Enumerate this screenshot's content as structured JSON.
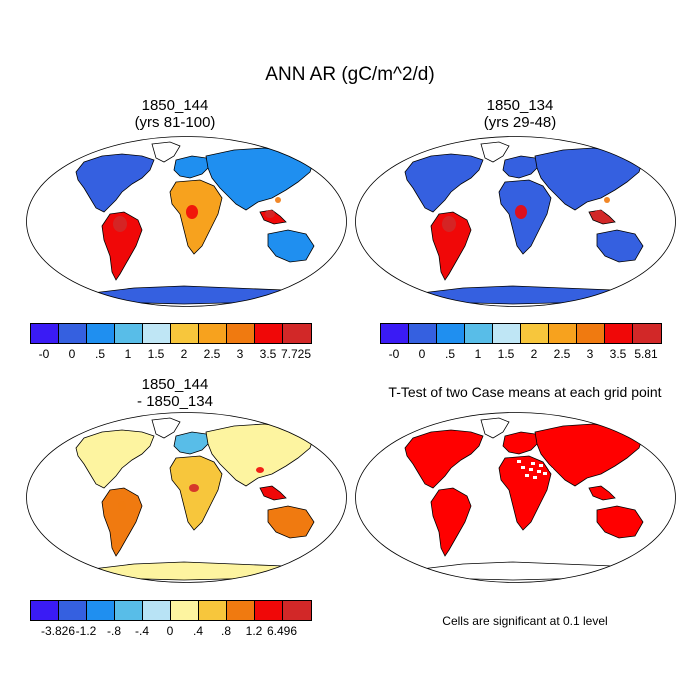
{
  "title": "ANN AR (gC/m^2/d)",
  "panels": [
    {
      "title_line1": "1850_144",
      "title_line2": "(yrs 81-100)",
      "colorbar": {
        "labels": [
          "-0",
          "0",
          ".5",
          "1",
          "1.5",
          "2",
          "2.5",
          "3",
          "3.5",
          "7.725"
        ],
        "colors": [
          "#3a1bf5",
          "#3560e0",
          "#1f8ff0",
          "#58bde8",
          "#bfe6f5",
          "#f7c63c",
          "#f7a21e",
          "#f07a10",
          "#f00808",
          "#d22828"
        ]
      }
    },
    {
      "title_line1": "1850_134",
      "title_line2": "(yrs 29-48)",
      "colorbar": {
        "labels": [
          "-0",
          "0",
          ".5",
          "1",
          "1.5",
          "2",
          "2.5",
          "3",
          "3.5",
          "5.81"
        ],
        "colors": [
          "#3a1bf5",
          "#3560e0",
          "#1f8ff0",
          "#58bde8",
          "#bfe6f5",
          "#f7c63c",
          "#f7a21e",
          "#f07a10",
          "#f00808",
          "#d22828"
        ]
      }
    },
    {
      "title_line1": "1850_144",
      "title_line2": "- 1850_134",
      "colorbar": {
        "labels": [
          "-3.826",
          "-1.2",
          "-.8",
          "-.4",
          "0",
          ".4",
          ".8",
          "1.2",
          "6.496"
        ],
        "colors": [
          "#3a1bf5",
          "#3560e0",
          "#1f8ff0",
          "#58bde8",
          "#b8e3f5",
          "#fdf4a0",
          "#f7c63c",
          "#f07a10",
          "#f00808",
          "#d22828"
        ]
      }
    },
    {
      "title": "T-Test of two Case means at each grid point",
      "note": "Cells are significant at 0.1 level",
      "significant_color": "#ff0000"
    }
  ]
}
